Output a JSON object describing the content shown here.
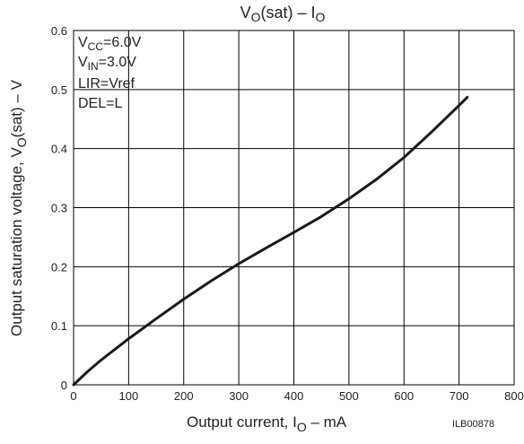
{
  "chart_data": {
    "type": "line",
    "title": {
      "main": "V",
      "sub1": "O",
      "mid": "(sat)  –  I",
      "sub2": "O"
    },
    "xlabel": {
      "pre": "Output current,  I",
      "sub": "O",
      "post": "  –  mA"
    },
    "ylabel": {
      "pre": "Output saturation voltage,  V",
      "sub": "O",
      "post": "(sat)  –  V"
    },
    "xlim": [
      0,
      800
    ],
    "ylim": [
      0,
      0.6
    ],
    "x_ticks": [
      "0",
      "100",
      "200",
      "300",
      "400",
      "500",
      "600",
      "700",
      "800"
    ],
    "y_ticks": [
      "0",
      "0.1",
      "0.2",
      "0.3",
      "0.4",
      "0.5",
      "0.6"
    ],
    "grid": true,
    "conditions": [
      {
        "pre": "V",
        "sub": "CC",
        "post": "=6.0V"
      },
      {
        "pre": "V",
        "sub": "IN",
        "post": "=3.0V"
      },
      {
        "pre": "LIR=Vref",
        "sub": "",
        "post": ""
      },
      {
        "pre": "DEL=L",
        "sub": "",
        "post": ""
      }
    ],
    "code_label": "ILB00878",
    "series": [
      {
        "x": [
          0,
          25,
          50,
          100,
          150,
          200,
          250,
          300,
          350,
          400,
          450,
          500,
          550,
          600,
          650,
          700,
          715
        ],
        "y": [
          0,
          0.022,
          0.042,
          0.078,
          0.112,
          0.145,
          0.176,
          0.205,
          0.232,
          0.258,
          0.285,
          0.315,
          0.348,
          0.385,
          0.428,
          0.473,
          0.487
        ]
      }
    ],
    "color": "#1a1a1a"
  }
}
